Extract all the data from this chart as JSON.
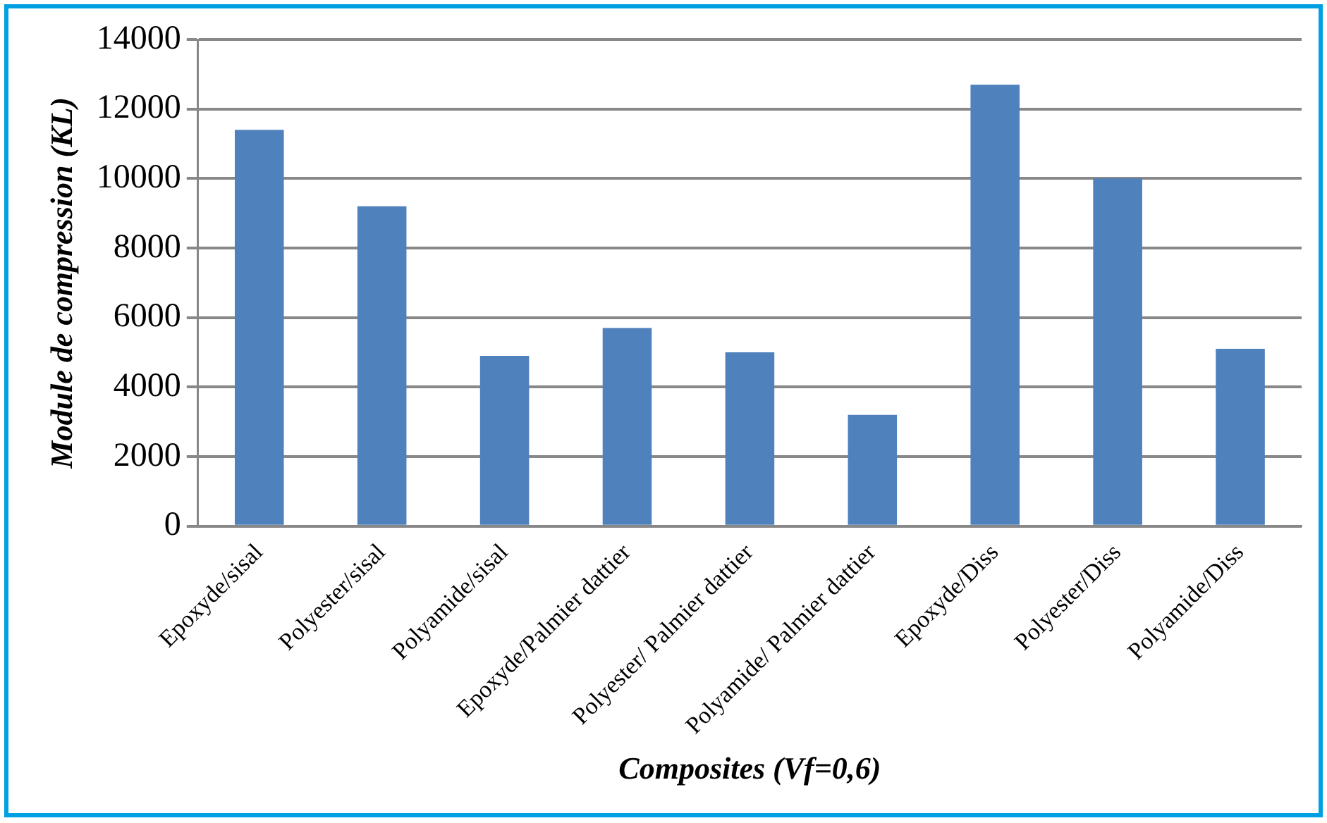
{
  "chart_data": {
    "type": "bar",
    "xlabel": "Composites (Vf=0,6)",
    "ylabel": "Module de compression (KL)",
    "categories": [
      "Epoxyde/sisal",
      "Polyester/sisal",
      "Polyamide/sisal",
      "Epoxyde/Palmier dattier",
      "Polyester/ Palmier dattier",
      "Polyamide/ Palmier dattier",
      "Epoxyde/Diss",
      "Polyester/Diss",
      "Polyamide/Diss"
    ],
    "values": [
      11400,
      9200,
      4900,
      5700,
      5000,
      3200,
      12700,
      10000,
      5100
    ],
    "color": "#4f81bd",
    "ylim": [
      0,
      14000
    ],
    "yticks": [
      0,
      2000,
      4000,
      6000,
      8000,
      10000,
      12000,
      14000
    ],
    "grid": "y"
  }
}
